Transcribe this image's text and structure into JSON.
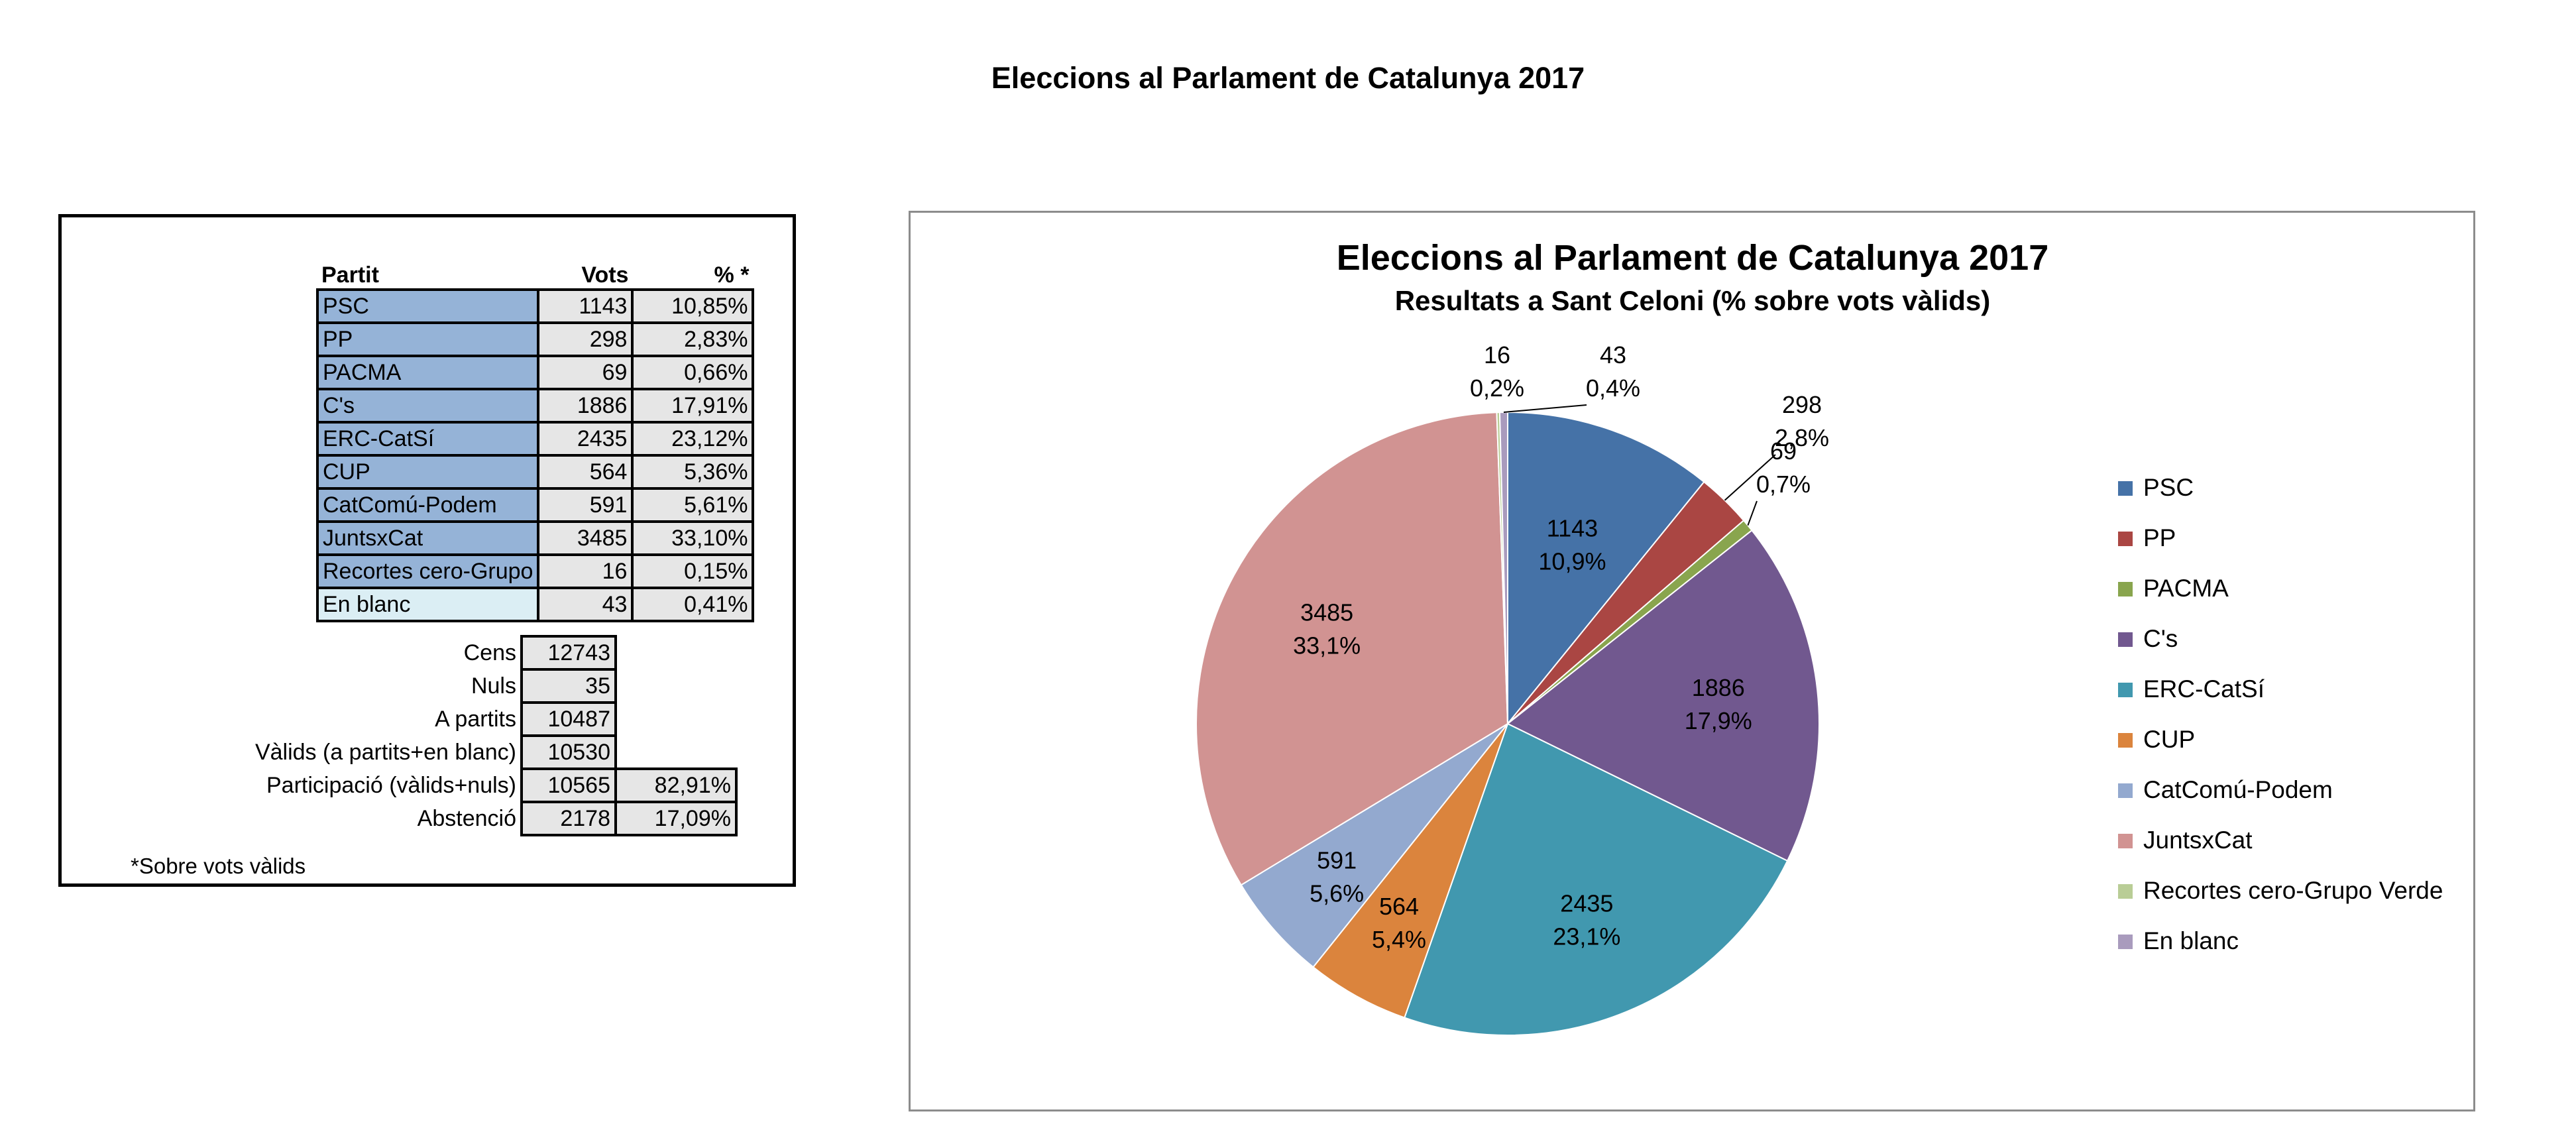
{
  "page": {
    "title": "Eleccions al Parlament de Catalunya 2017"
  },
  "table": {
    "headers": {
      "party": "Partit",
      "votes": "Vots",
      "pct": "% *"
    },
    "rows": [
      {
        "party": "PSC",
        "votes": "1143",
        "pct": "10,85%"
      },
      {
        "party": "PP",
        "votes": "298",
        "pct": "2,83%"
      },
      {
        "party": "PACMA",
        "votes": "69",
        "pct": "0,66%"
      },
      {
        "party": "C's",
        "votes": "1886",
        "pct": "17,91%"
      },
      {
        "party": "ERC-CatSí",
        "votes": "2435",
        "pct": "23,12%"
      },
      {
        "party": "CUP",
        "votes": "564",
        "pct": "5,36%"
      },
      {
        "party": "CatComú-Podem",
        "votes": "591",
        "pct": "5,61%"
      },
      {
        "party": "JuntsxCat",
        "votes": "3485",
        "pct": "33,10%"
      },
      {
        "party": "Recortes cero-Grupo",
        "votes": "16",
        "pct": "0,15%"
      },
      {
        "party": "En blanc",
        "votes": "43",
        "pct": "0,41%"
      }
    ],
    "stats": [
      {
        "label": "Cens",
        "value": "12743",
        "pct": ""
      },
      {
        "label": "Nuls",
        "value": "35",
        "pct": ""
      },
      {
        "label": "A partits",
        "value": "10487",
        "pct": ""
      },
      {
        "label": "Vàlids (a partits+en blanc)",
        "value": "10530",
        "pct": ""
      },
      {
        "label": "Participació (vàlids+nuls)",
        "value": "10565",
        "pct": "82,91%"
      },
      {
        "label": "Abstenció",
        "value": "2178",
        "pct": "17,09%"
      }
    ],
    "footnote": "*Sobre vots vàlids"
  },
  "chart_data": {
    "type": "pie",
    "title": "Eleccions al Parlament de Catalunya 2017",
    "subtitle": "Resultats a Sant Celoni (% sobre vots vàlids)",
    "legend_position": "right",
    "slices": [
      {
        "label": "PSC",
        "legend": "PSC",
        "value": 1143,
        "pct_label": "10,9%",
        "color": "#4572a7"
      },
      {
        "label": "PP",
        "legend": "PP",
        "value": 298,
        "pct_label": "2,8%",
        "color": "#aa4643"
      },
      {
        "label": "PACMA",
        "legend": "PACMA",
        "value": 69,
        "pct_label": "0,7%",
        "color": "#89a54e"
      },
      {
        "label": "C's",
        "legend": "C's",
        "value": 1886,
        "pct_label": "17,9%",
        "color": "#71588f"
      },
      {
        "label": "ERC-CatSí",
        "legend": "ERC-CatSí",
        "value": 2435,
        "pct_label": "23,1%",
        "color": "#4198af"
      },
      {
        "label": "CUP",
        "legend": "CUP",
        "value": 564,
        "pct_label": "5,4%",
        "color": "#db843d"
      },
      {
        "label": "CatComú-Podem",
        "legend": "CatComú-Podem",
        "value": 591,
        "pct_label": "5,6%",
        "color": "#93a9cf"
      },
      {
        "label": "JuntsxCat",
        "legend": "JuntsxCat",
        "value": 3485,
        "pct_label": "33,1%",
        "color": "#d19392"
      },
      {
        "label": "Recortes cero-Grupo Verde",
        "legend": "Recortes cero-Grupo Verde",
        "value": 16,
        "pct_label": "0,2%",
        "color": "#b9cd96"
      },
      {
        "label": "En blanc",
        "legend": "En blanc",
        "value": 43,
        "pct_label": "0,4%",
        "color": "#a99bbd"
      }
    ]
  }
}
